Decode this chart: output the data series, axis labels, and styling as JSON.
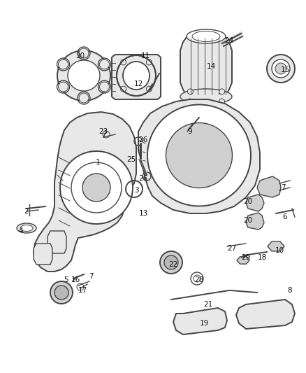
{
  "bg_color": "#ffffff",
  "line_color": "#444444",
  "fill_light": "#e8e8e8",
  "fill_mid": "#d0d0d0",
  "fill_dark": "#b8b8b8",
  "fig_width": 4.38,
  "fig_height": 5.33,
  "dpi": 100,
  "part_labels": [
    [
      "1",
      140,
      232
    ],
    [
      "2",
      38,
      302
    ],
    [
      "3",
      195,
      272
    ],
    [
      "4",
      30,
      330
    ],
    [
      "5",
      95,
      400
    ],
    [
      "6",
      408,
      310
    ],
    [
      "7",
      405,
      268
    ],
    [
      "7",
      130,
      395
    ],
    [
      "8",
      415,
      415
    ],
    [
      "9",
      272,
      188
    ],
    [
      "10",
      400,
      358
    ],
    [
      "11",
      208,
      80
    ],
    [
      "12",
      198,
      120
    ],
    [
      "13",
      205,
      305
    ],
    [
      "14",
      302,
      95
    ],
    [
      "15",
      408,
      100
    ],
    [
      "16",
      108,
      400
    ],
    [
      "17",
      118,
      415
    ],
    [
      "18",
      375,
      368
    ],
    [
      "19",
      292,
      462
    ],
    [
      "20",
      355,
      288
    ],
    [
      "20",
      355,
      315
    ],
    [
      "21",
      298,
      435
    ],
    [
      "22",
      248,
      378
    ],
    [
      "23",
      148,
      188
    ],
    [
      "24",
      328,
      58
    ],
    [
      "25",
      188,
      228
    ],
    [
      "26",
      205,
      200
    ],
    [
      "26",
      205,
      255
    ],
    [
      "27",
      332,
      355
    ],
    [
      "28",
      285,
      400
    ],
    [
      "29",
      352,
      368
    ],
    [
      "30",
      115,
      80
    ]
  ]
}
